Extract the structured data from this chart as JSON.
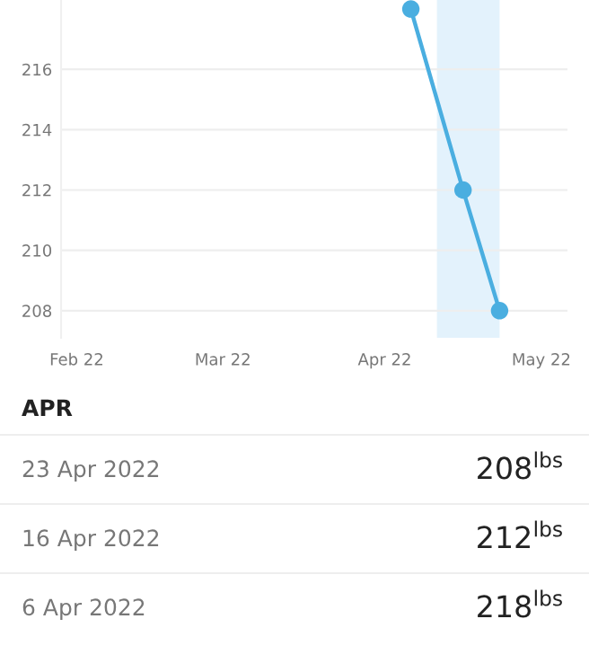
{
  "chart_data": {
    "type": "line",
    "x": [
      "2022-04-06",
      "2022-04-16",
      "2022-04-23"
    ],
    "series": [
      {
        "color": "#4aaee0",
        "values": [
          218,
          212,
          208
        ]
      }
    ],
    "xlim": [
      "2022-01-29",
      "2022-05-06"
    ],
    "xticks": [
      {
        "value": "2022-02-01",
        "label": "Feb 22"
      },
      {
        "value": "2022-03-01",
        "label": "Mar 22"
      },
      {
        "value": "2022-04-01",
        "label": "Apr 22"
      },
      {
        "value": "2022-05-01",
        "label": "May 22"
      }
    ],
    "ylim": [
      207.1,
      218.3
    ],
    "yticks": [
      208,
      210,
      212,
      214,
      216
    ],
    "grid": "y",
    "marker": "circle",
    "line_style": "solid",
    "bands": [
      {
        "axis": "x",
        "from": "2022-04-11",
        "to": "2022-04-23",
        "color": "#e3f2fc"
      }
    ],
    "annotations": [
      "APR",
      "23 Apr 2022",
      "208$^{lbs}$",
      "16 Apr 2022",
      "212$^{lbs}$",
      "6 Apr 2022",
      "218$^{lbs}$"
    ]
  }
}
